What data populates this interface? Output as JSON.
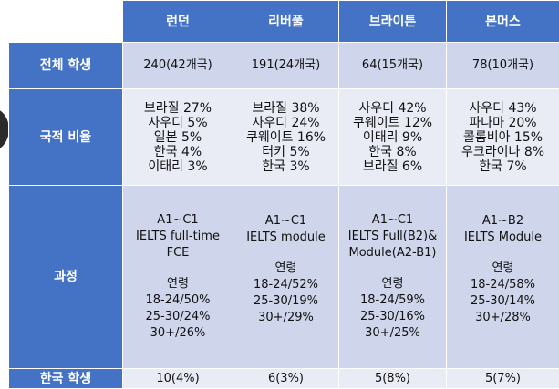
{
  "columns": [
    "런던",
    "리버풀",
    "브라이튼",
    "본머스"
  ],
  "rows": {
    "total": {
      "label": "전체 학생",
      "cells": [
        "240(42개국)",
        "191(24개국)",
        "64(15개국)",
        "78(10개국)"
      ]
    },
    "nationality": {
      "label": "국적 비율",
      "cells": [
        [
          "브라질 27%",
          "사우디 5%",
          "일본 5%",
          "한국 4%",
          "이태리 3%"
        ],
        [
          "브라질 38%",
          "사우디 24%",
          "쿠웨이트 16%",
          "터키 5%",
          "한국 3%"
        ],
        [
          "사우디 42%",
          "쿠웨이트 12%",
          "이태리 9%",
          "한국 8%",
          "브라질 6%"
        ],
        [
          "사우디 43%",
          "파나마 20%",
          "콜롬비아 15%",
          "우크라이나 8%",
          "한국 7%"
        ]
      ]
    },
    "course": {
      "label": "과정",
      "cells": [
        {
          "programs": [
            "A1~C1",
            "IELTS full-time",
            "FCE"
          ],
          "age_label": "연령",
          "ages": [
            "18-24/50%",
            "25-30/24%",
            "30+/26%"
          ]
        },
        {
          "programs": [
            "A1~C1",
            "IELTS module"
          ],
          "age_label": "연령",
          "ages": [
            "18-24/52%",
            "25-30/19%",
            "30+/29%"
          ]
        },
        {
          "programs": [
            "A1~C1",
            "IELTS Full(B2)&",
            "Module(A2-B1)"
          ],
          "age_label": "연령",
          "ages": [
            "18-24/59%",
            "25-30/16%",
            "30+/25%"
          ]
        },
        {
          "programs": [
            "A1~B2",
            "IELTS Module"
          ],
          "age_label": "연령",
          "ages": [
            "18-24/58%",
            "25-30/14%",
            "30+/28%"
          ]
        }
      ]
    },
    "korean": {
      "label": "한국 학생",
      "cells": [
        "10(4%)",
        "6(3%)",
        "5(8%)",
        "5(7%)"
      ]
    }
  }
}
